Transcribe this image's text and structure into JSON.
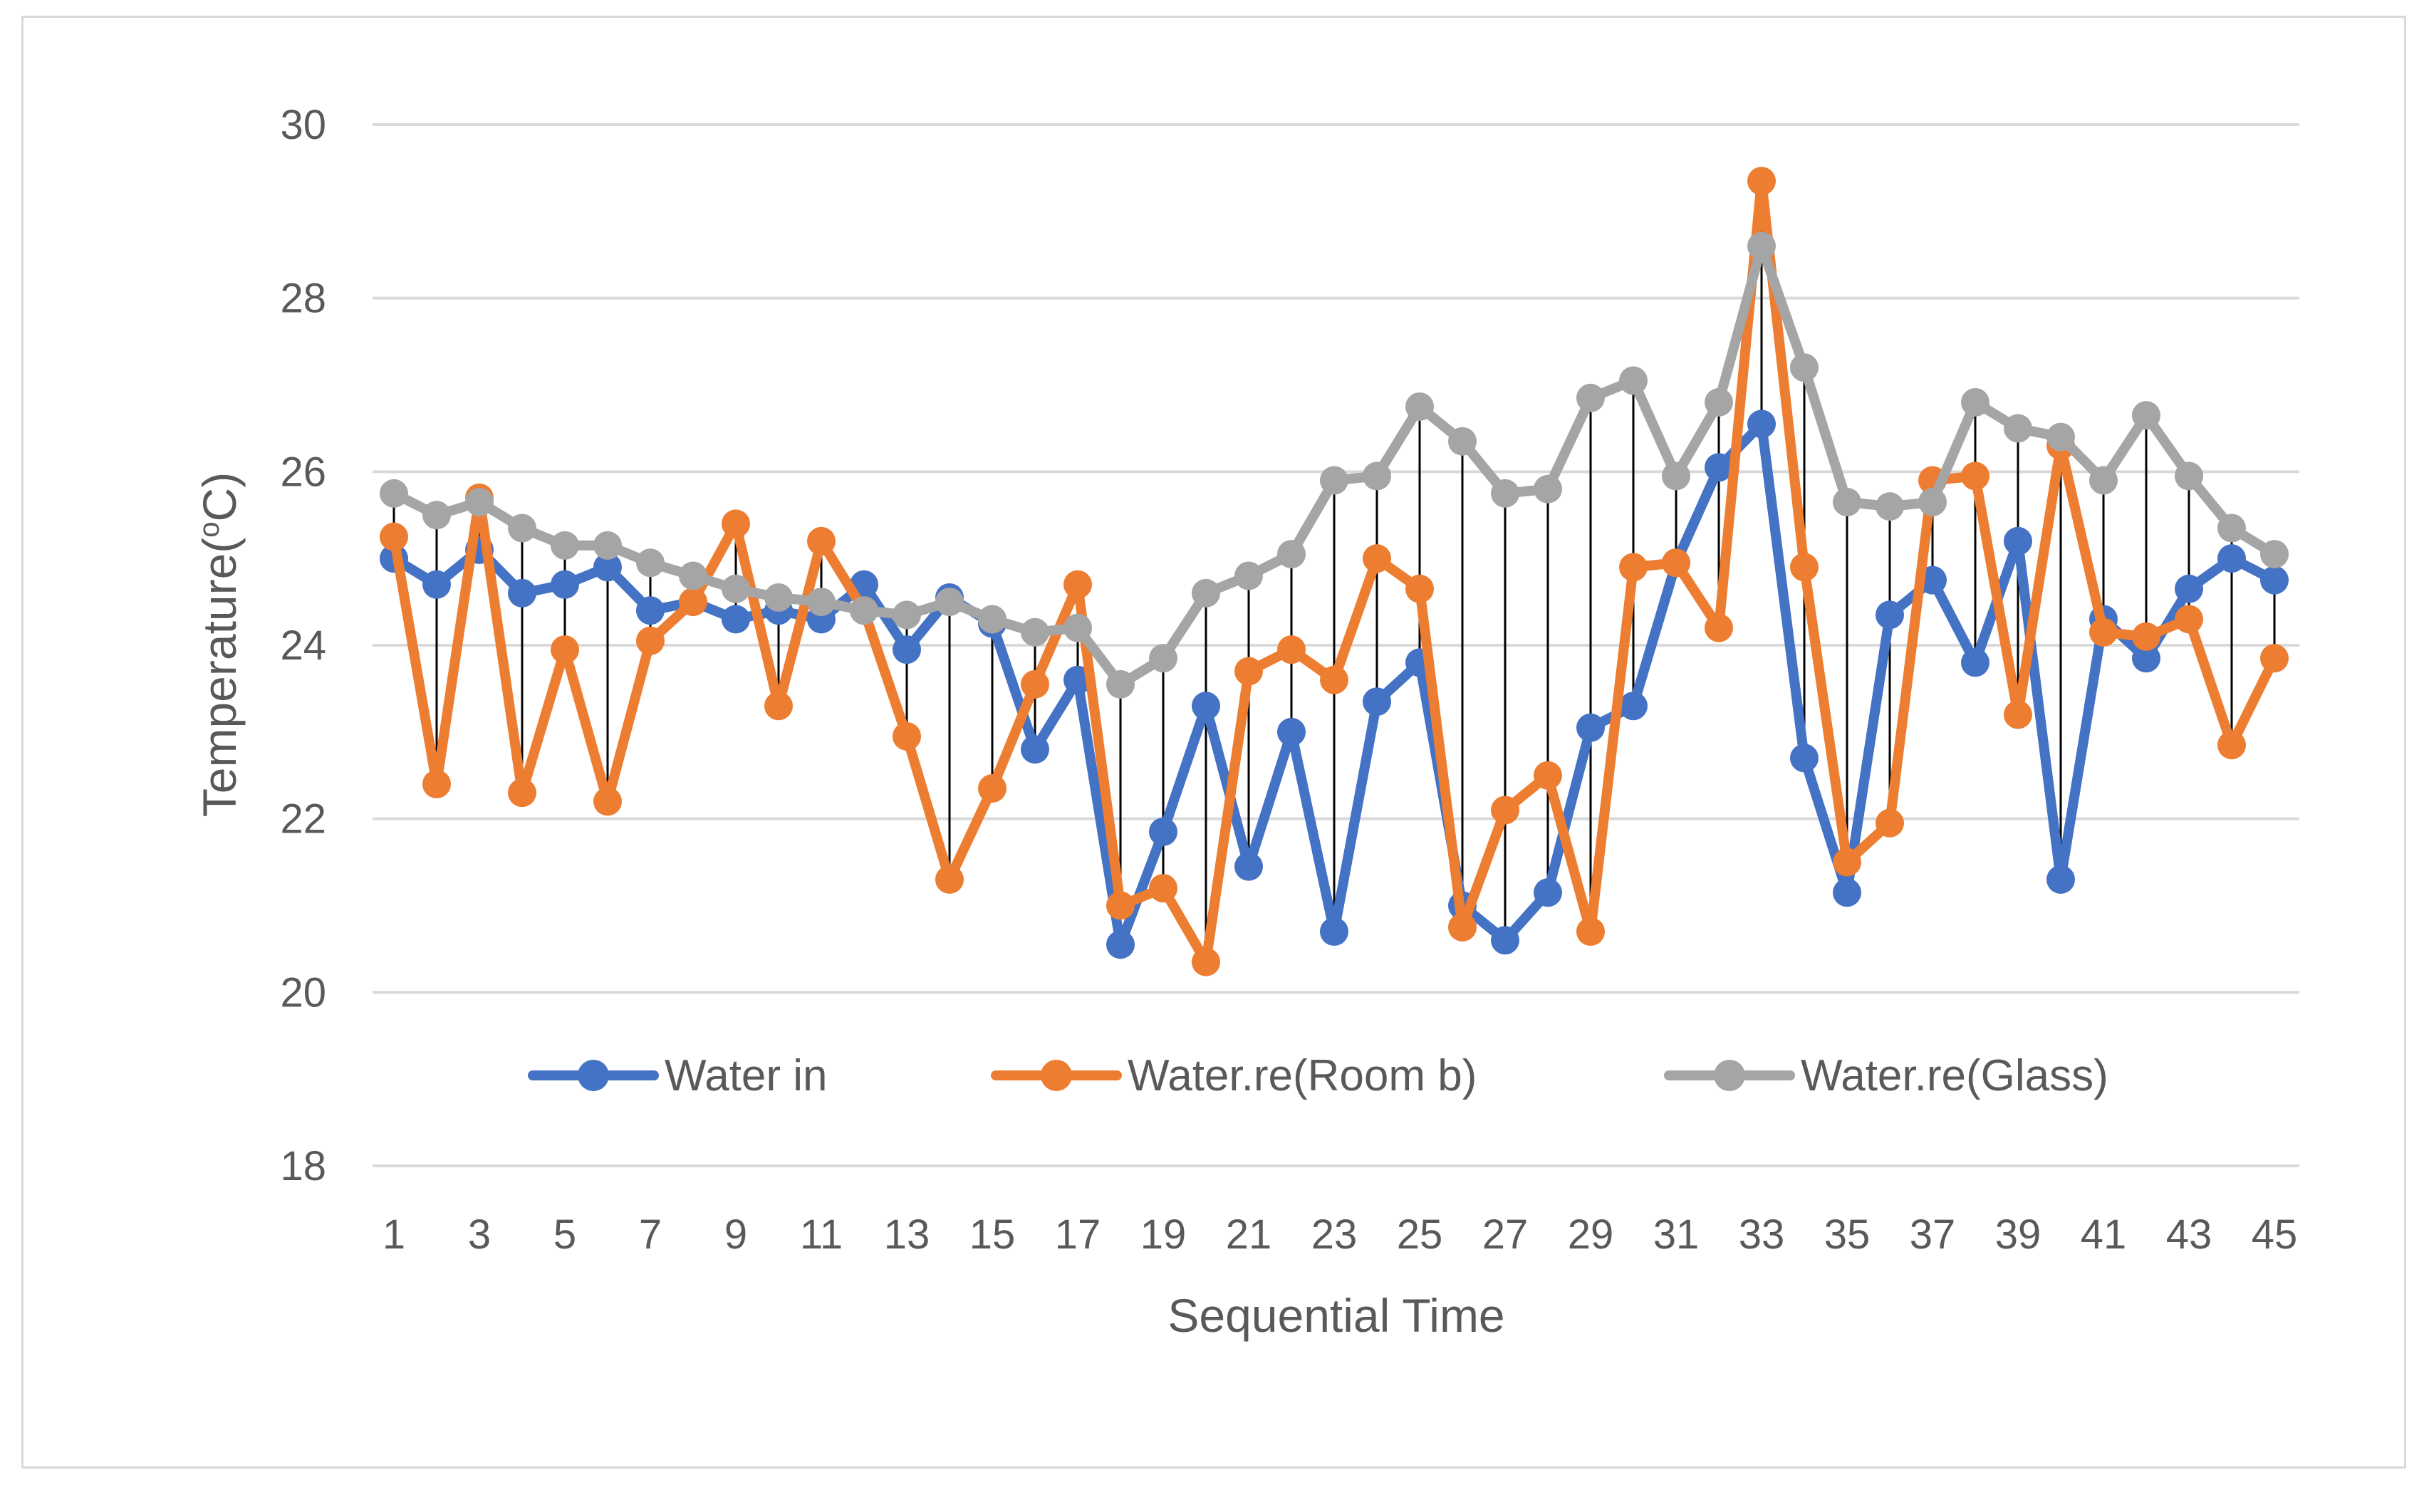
{
  "chart_data": {
    "type": "line",
    "title": "",
    "xlabel": "Sequential Time",
    "ylabel": "Temperature(oC)",
    "ylabel_parts": {
      "before": "Temperature(",
      "superscript": "o",
      "after": "C)"
    },
    "ylim": [
      18,
      30
    ],
    "yticks": [
      "18",
      "20",
      "22",
      "24",
      "26",
      "28",
      "30"
    ],
    "x": [
      1,
      2,
      3,
      4,
      5,
      6,
      7,
      8,
      9,
      10,
      11,
      12,
      13,
      14,
      15,
      16,
      17,
      18,
      19,
      20,
      21,
      22,
      23,
      24,
      25,
      26,
      27,
      28,
      29,
      30,
      31,
      32,
      33,
      34,
      35,
      36,
      37,
      38,
      39,
      40,
      41,
      42,
      43,
      44,
      45
    ],
    "xtick_labels": [
      "1",
      "3",
      "5",
      "7",
      "9",
      "11",
      "13",
      "15",
      "17",
      "19",
      "21",
      "23",
      "25",
      "27",
      "29",
      "31",
      "33",
      "35",
      "37",
      "39",
      "41",
      "43",
      "45"
    ],
    "grid": "horizontal",
    "drop_lines": true,
    "legend_position": "bottom-inside",
    "series": [
      {
        "name": "Water in",
        "color": "#4472c4",
        "values": [
          25.0,
          24.7,
          25.1,
          24.6,
          24.7,
          24.9,
          24.4,
          24.5,
          24.3,
          24.4,
          24.3,
          24.7,
          23.95,
          24.55,
          24.25,
          22.8,
          23.6,
          20.55,
          21.85,
          23.3,
          21.45,
          23.0,
          20.7,
          23.35,
          23.8,
          21.0,
          20.6,
          21.15,
          23.05,
          23.3,
          24.95,
          26.05,
          26.55,
          22.7,
          21.15,
          24.35,
          24.75,
          23.8,
          25.2,
          21.3,
          24.3,
          23.85,
          24.65,
          25.0,
          24.75
        ]
      },
      {
        "name": "Water.re(Room b)",
        "color": "#ed7d31",
        "values": [
          25.25,
          22.4,
          25.7,
          22.3,
          23.95,
          22.2,
          24.05,
          24.5,
          25.4,
          23.3,
          25.2,
          24.4,
          22.95,
          21.3,
          22.35,
          23.55,
          24.7,
          21.0,
          21.2,
          20.35,
          23.7,
          23.95,
          23.6,
          25.0,
          24.65,
          20.75,
          22.1,
          22.5,
          20.7,
          24.9,
          24.95,
          24.2,
          29.35,
          24.9,
          21.5,
          21.95,
          25.9,
          25.95,
          23.2,
          26.3,
          24.15,
          24.1,
          24.3,
          22.85,
          23.85
        ]
      },
      {
        "name": "Water.re(Glass)",
        "color": "#a5a5a5",
        "values": [
          25.75,
          25.5,
          25.65,
          25.35,
          25.15,
          25.15,
          24.95,
          24.8,
          24.65,
          24.55,
          24.5,
          24.4,
          24.35,
          24.5,
          24.3,
          24.15,
          24.2,
          23.55,
          23.85,
          24.6,
          24.8,
          25.05,
          25.9,
          25.95,
          26.75,
          26.35,
          25.75,
          25.8,
          26.85,
          27.05,
          25.95,
          26.8,
          28.6,
          27.2,
          25.65,
          25.6,
          25.65,
          26.8,
          26.5,
          26.4,
          25.9,
          26.65,
          25.95,
          25.35,
          25.05
        ]
      }
    ]
  }
}
